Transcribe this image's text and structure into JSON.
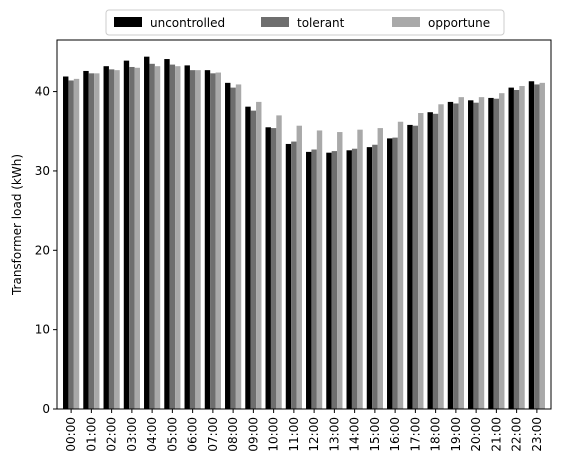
{
  "chart_data": {
    "type": "bar",
    "title": "",
    "xlabel": "",
    "ylabel": "Transformer load (kWh)",
    "ylim": [
      0,
      46.5
    ],
    "yticks": [
      0,
      10,
      20,
      30,
      40
    ],
    "grid": false,
    "legend_position": "top-center",
    "categories": [
      "00:00",
      "01:00",
      "02:00",
      "03:00",
      "04:00",
      "05:00",
      "06:00",
      "07:00",
      "08:00",
      "09:00",
      "10:00",
      "11:00",
      "12:00",
      "13:00",
      "14:00",
      "15:00",
      "16:00",
      "17:00",
      "18:00",
      "19:00",
      "20:00",
      "21:00",
      "22:00",
      "23:00"
    ],
    "series": [
      {
        "name": "uncontrolled",
        "color": "#000000",
        "values": [
          41.9,
          42.6,
          43.2,
          43.9,
          44.4,
          44.1,
          43.3,
          42.7,
          41.1,
          38.1,
          35.5,
          33.4,
          32.4,
          32.3,
          32.6,
          33.0,
          34.1,
          35.8,
          37.4,
          38.7,
          38.9,
          39.2,
          40.5,
          41.3
        ]
      },
      {
        "name": "tolerant",
        "color": "#6e6e6e",
        "values": [
          41.4,
          42.3,
          42.8,
          43.1,
          43.5,
          43.4,
          42.7,
          42.3,
          40.5,
          37.6,
          35.4,
          33.7,
          32.7,
          32.5,
          32.8,
          33.3,
          34.2,
          35.7,
          37.2,
          38.5,
          38.6,
          39.1,
          40.2,
          40.9
        ]
      },
      {
        "name": "opportune",
        "color": "#a9a9a9",
        "values": [
          41.6,
          42.3,
          42.7,
          43.0,
          43.2,
          43.2,
          42.7,
          42.4,
          40.9,
          38.7,
          37.0,
          35.7,
          35.1,
          34.9,
          35.2,
          35.4,
          36.2,
          37.3,
          38.4,
          39.3,
          39.3,
          39.8,
          40.7,
          41.1
        ]
      }
    ]
  }
}
